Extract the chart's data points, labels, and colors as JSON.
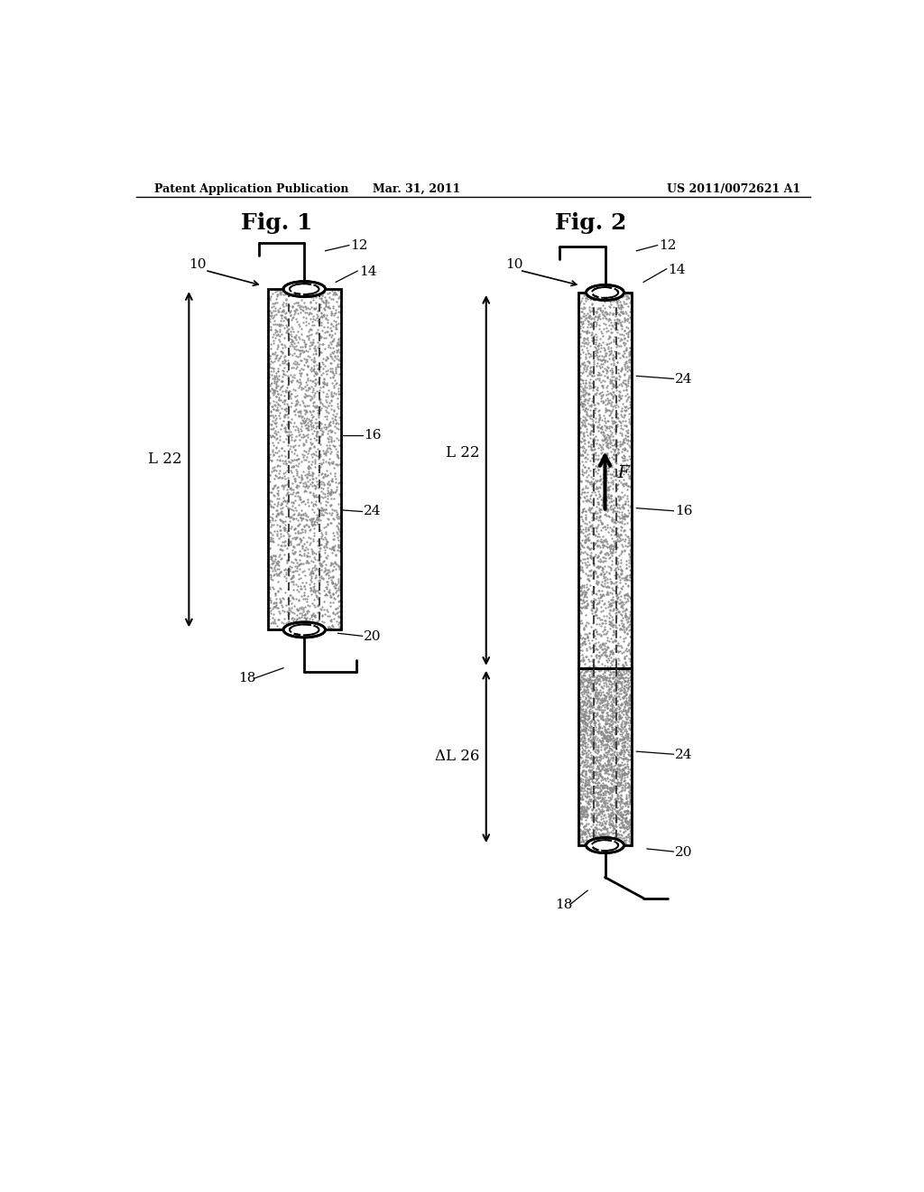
{
  "bg_color": "#ffffff",
  "header_left": "Patent Application Publication",
  "header_mid": "Mar. 31, 2011",
  "header_right": "US 2011/0072621 A1",
  "fig1_title": "Fig. 1",
  "fig2_title": "Fig. 2",
  "line_color": "#000000",
  "label_fontsize": 11,
  "title_fontsize": 18,
  "header_fontsize": 9
}
